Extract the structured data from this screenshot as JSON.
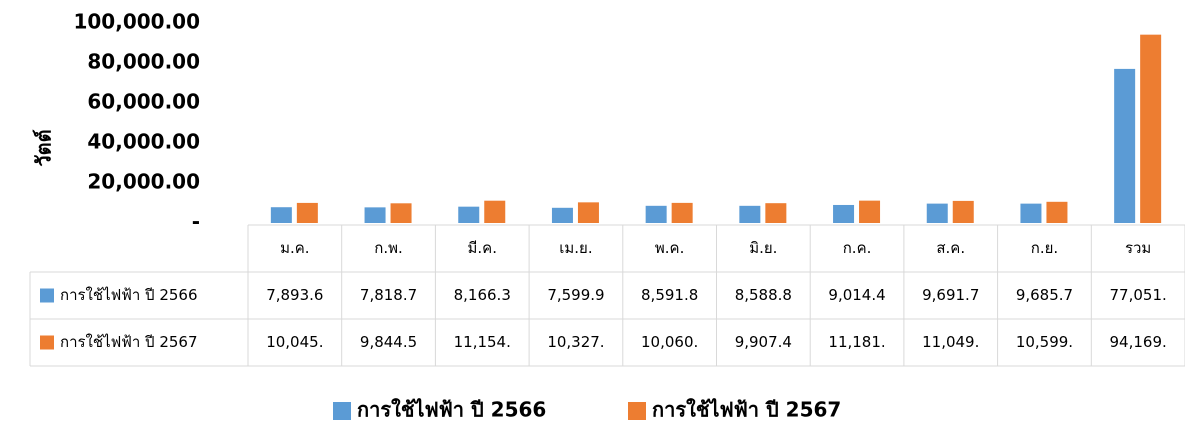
{
  "chart_data": {
    "type": "bar",
    "y_label": "วัตต์",
    "categories": [
      "ม.ค.",
      "ก.พ.",
      "มี.ค.",
      "เม.ย.",
      "พ.ค.",
      "มิ.ย.",
      "ก.ค.",
      "ส.ค.",
      "ก.ย.",
      "รวม"
    ],
    "series": [
      {
        "name": "การใช้ไฟฟ้า ปี 2566",
        "color": "#5b9bd5",
        "values": [
          7893.6,
          7818.7,
          8166.3,
          7599.9,
          8591.8,
          8588.8,
          9014.4,
          9691.7,
          9685.7,
          77051
        ],
        "value_labels": [
          "7,893.6",
          "7,818.7",
          "8,166.3",
          "7,599.9",
          "8,591.8",
          "8,588.8",
          "9,014.4",
          "9,691.7",
          "9,685.7",
          "77,051."
        ]
      },
      {
        "name": "การใช้ไฟฟ้า ปี 2567",
        "color": "#ed7d31",
        "values": [
          10045,
          9844.5,
          11154,
          10327,
          10060,
          9907.4,
          11181,
          11049,
          10599,
          94169
        ],
        "value_labels": [
          "10,045.",
          "9,844.5",
          "11,154.",
          "10,327.",
          "10,060.",
          "9,907.4",
          "11,181.",
          "11,049.",
          "10,599.",
          "94,169."
        ]
      }
    ],
    "ylim": [
      0,
      100000
    ],
    "yticks": [
      {
        "value": 0,
        "label": "-"
      },
      {
        "value": 20000,
        "label": "20,000.00"
      },
      {
        "value": 40000,
        "label": "40,000.00"
      },
      {
        "value": 60000,
        "label": "60,000.00"
      },
      {
        "value": 80000,
        "label": "80,000.00"
      },
      {
        "value": 100000,
        "label": "100,000.00"
      }
    ],
    "grid": false,
    "legend": "bottom"
  }
}
